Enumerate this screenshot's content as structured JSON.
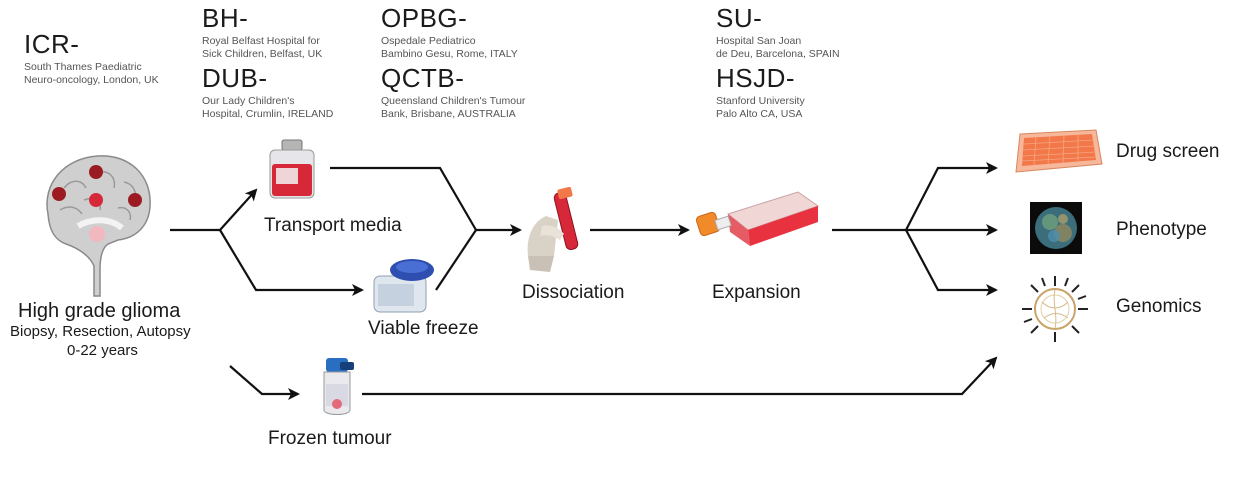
{
  "institutions": [
    {
      "code": "ICR-",
      "lines": [
        "South Thames Paediatric",
        "Neuro-oncology, London, UK"
      ]
    },
    {
      "code": "BH-",
      "lines": [
        "Royal Belfast Hospital for",
        "Sick Children, Belfast, UK"
      ]
    },
    {
      "code": "DUB-",
      "lines": [
        "Our Lady Children's",
        "Hospital, Crumlin, IRELAND"
      ]
    },
    {
      "code": "OPBG-",
      "lines": [
        "Ospedale Pediatrico",
        "Bambino Gesu, Rome, ITALY"
      ]
    },
    {
      "code": "QCTB-",
      "lines": [
        "Queensland Children's Tumour",
        "Bank, Brisbane, AUSTRALIA"
      ]
    },
    {
      "code": "SU-",
      "lines": [
        "Hospital San Joan",
        "de Deu, Barcelona, SPAIN"
      ]
    },
    {
      "code": "HSJD-",
      "lines": [
        "Stanford University",
        "Palo Alto CA, USA"
      ]
    }
  ],
  "source": {
    "title": "High grade glioma",
    "sub1": "Biopsy, Resection, Autopsy",
    "sub2": "0-22 years"
  },
  "steps": {
    "transport": "Transport media",
    "viable": "Viable freeze",
    "frozen": "Frozen tumour",
    "dissociation": "Dissociation",
    "expansion": "Expansion"
  },
  "outputs": {
    "drug": "Drug screen",
    "phenotype": "Phenotype",
    "genomics": "Genomics"
  },
  "colors": {
    "arrow": "#111111",
    "media_red": "#d7283a",
    "plate_orange": "#f2784a",
    "brain_red": "#9c1b23",
    "lid_blue": "#2f4fb0"
  }
}
